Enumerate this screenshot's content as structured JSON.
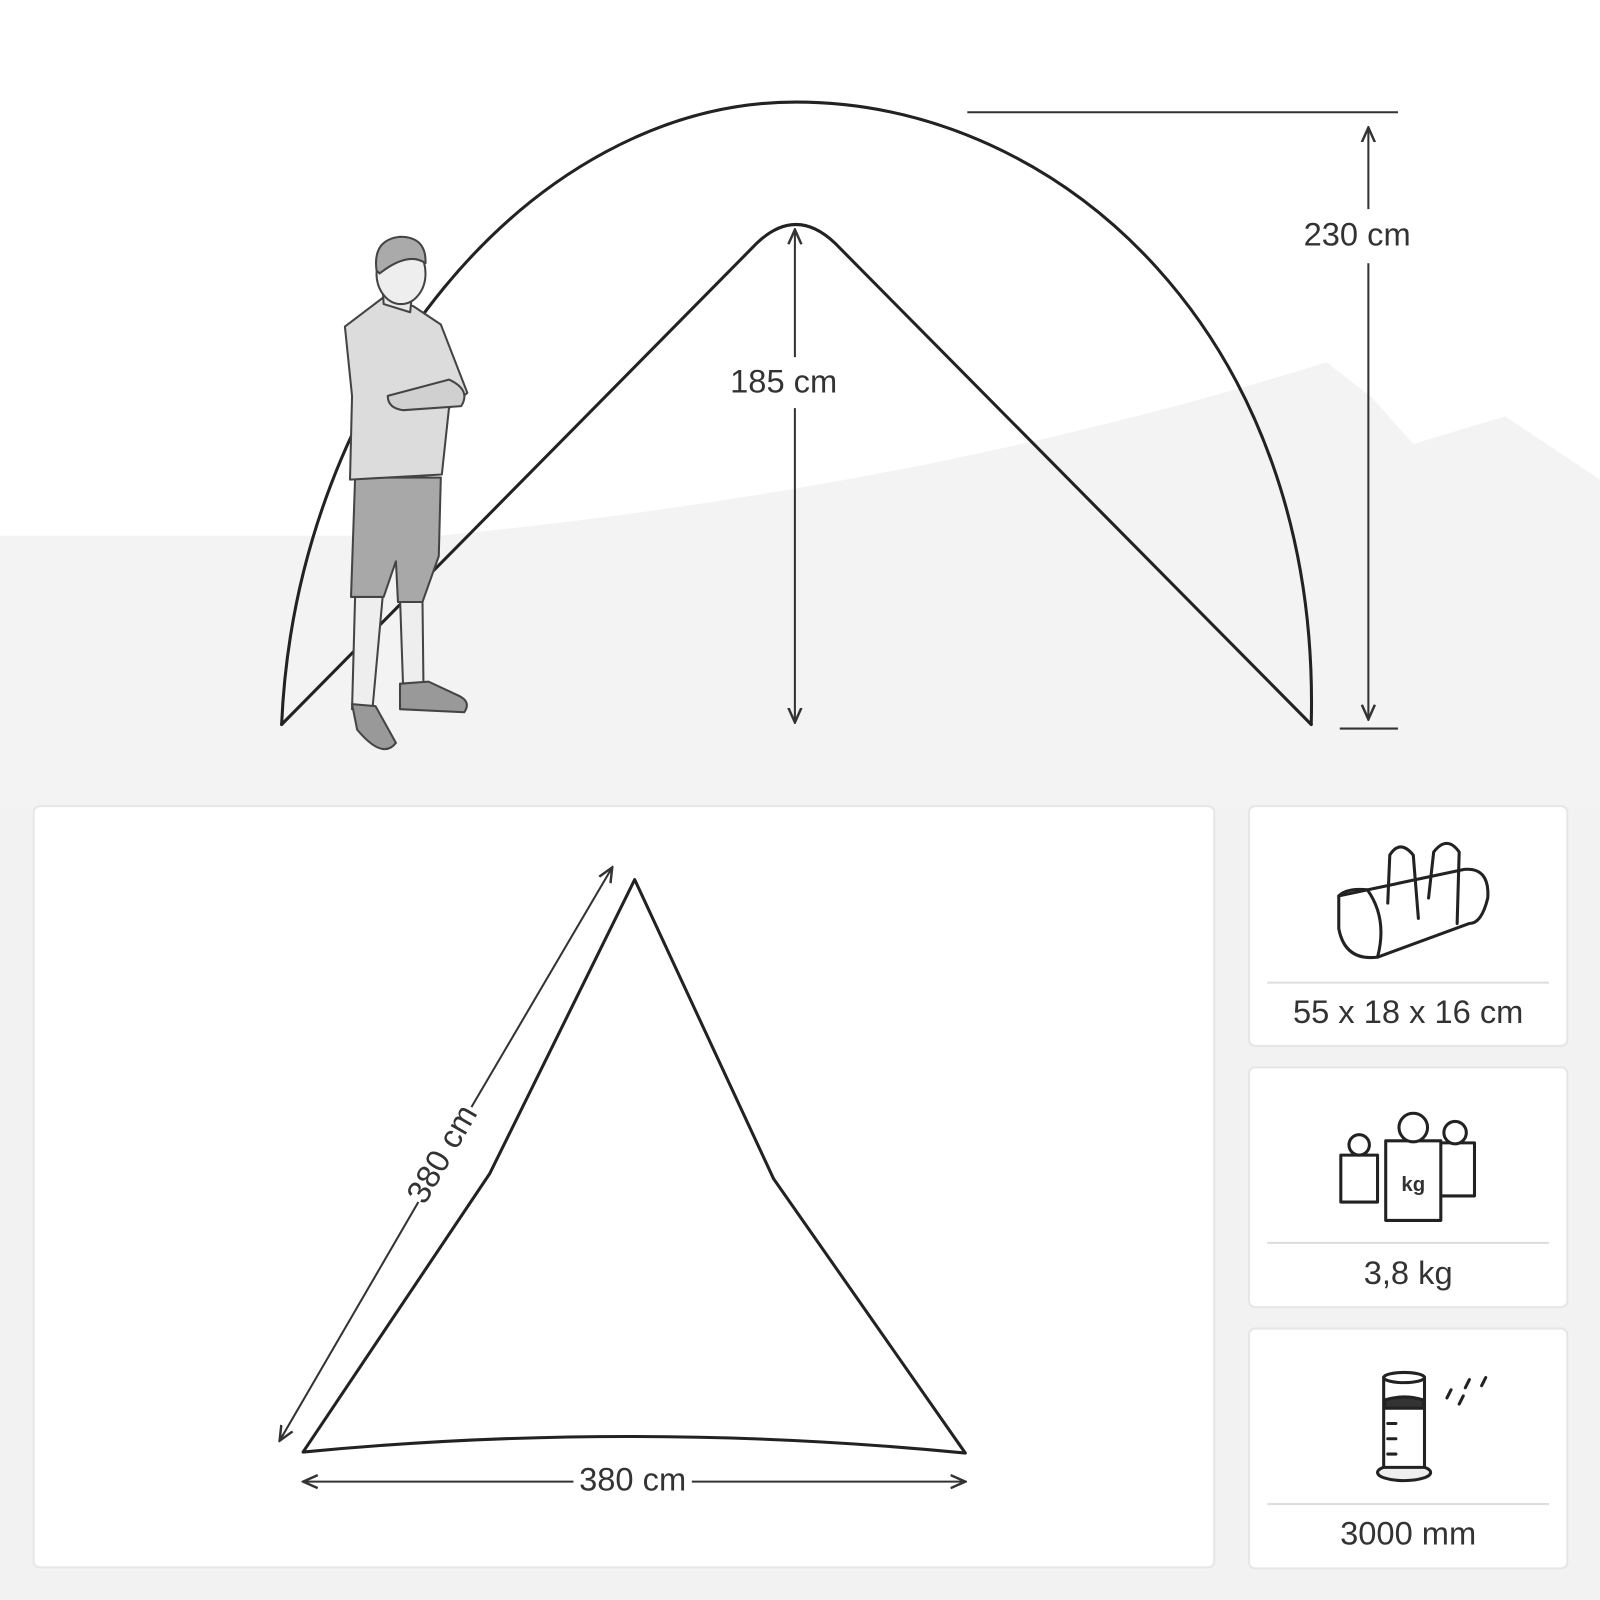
{
  "elevation": {
    "height_total": "230 cm",
    "height_inner": "185 cm"
  },
  "floor_plan": {
    "side": "380 cm",
    "base": "380 cm"
  },
  "specs": [
    {
      "label": "55 x 18 x 16 cm"
    },
    {
      "label": "3,8 kg",
      "icon_text": "kg"
    },
    {
      "label": "3000 mm"
    }
  ]
}
